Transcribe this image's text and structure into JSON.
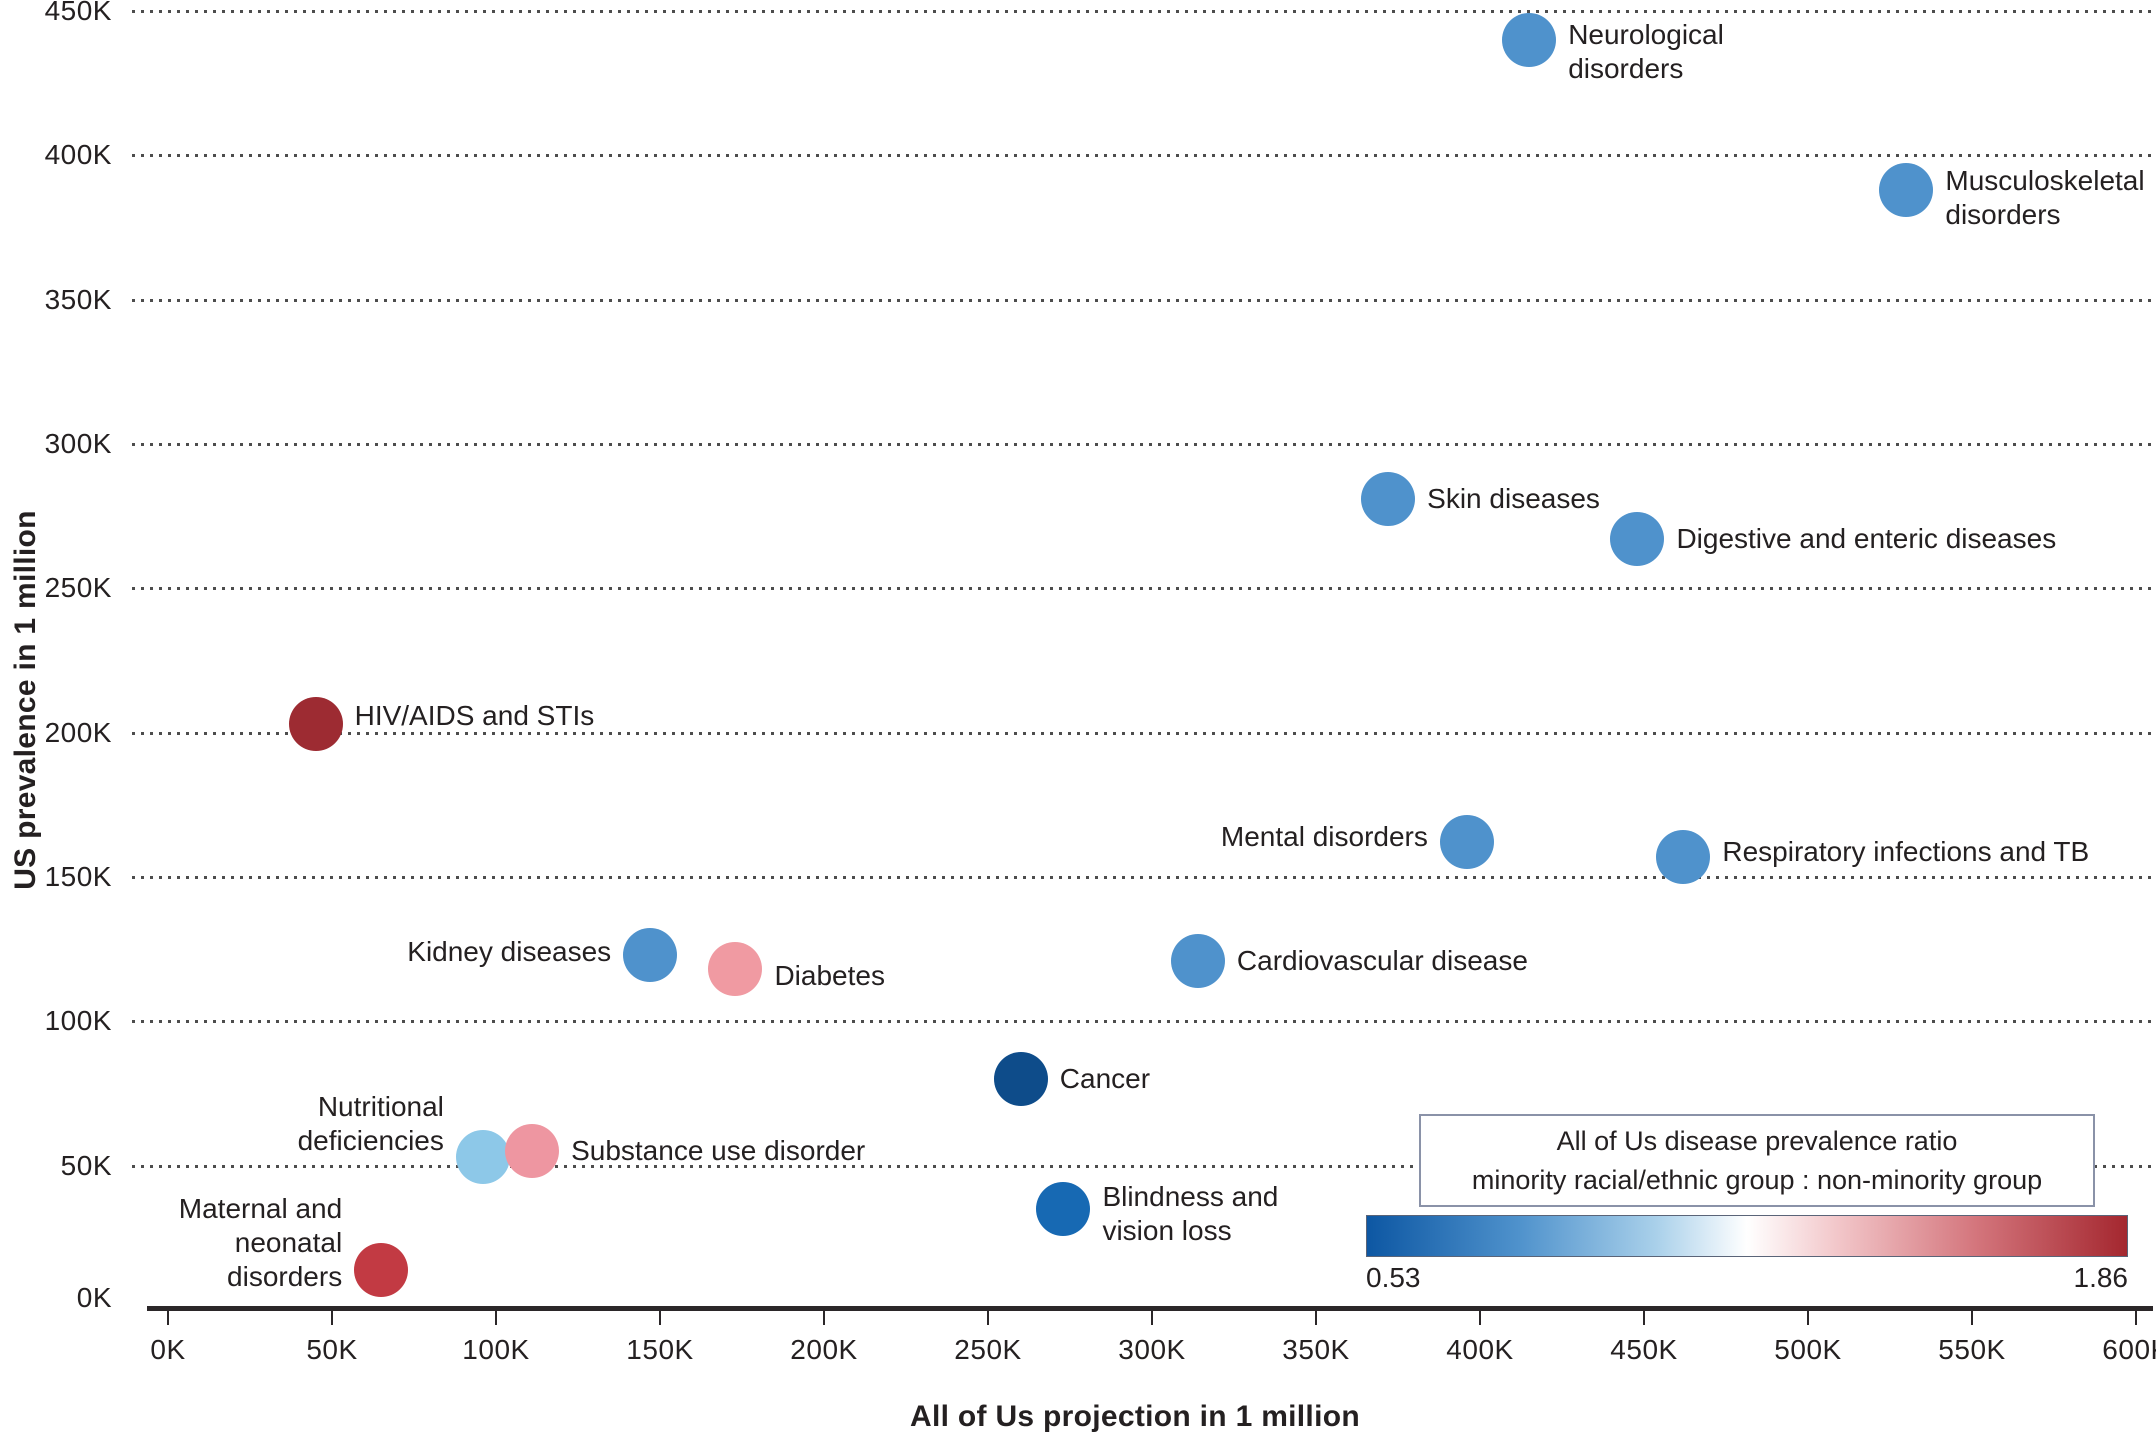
{
  "legend": {
    "title_line1": "All of Us disease prevalence ratio",
    "title_line2": "minority racial/ethnic group : non-minority group",
    "min_label": "0.53",
    "max_label": "1.86"
  },
  "chart_data": {
    "type": "scatter",
    "title": "",
    "xlabel": "All of Us projection in 1 million",
    "ylabel": "US prevalence in 1 million",
    "units": "thousands (K)",
    "xlim": [
      0,
      600
    ],
    "ylim": [
      0,
      450
    ],
    "x_tick_labels": [
      "0K",
      "50K",
      "100K",
      "150K",
      "200K",
      "250K",
      "300K",
      "350K",
      "400K",
      "450K",
      "500K",
      "550K",
      "600K"
    ],
    "y_tick_labels": [
      "0K",
      "50K",
      "100K",
      "150K",
      "200K",
      "250K",
      "300K",
      "350K",
      "400K",
      "450K"
    ],
    "grid": "horizontal-dotted",
    "legend_position": "bottom-right",
    "colorbar": {
      "label_line1": "All of Us disease prevalence ratio",
      "label_line2": "minority racial/ethnic group : non-minority group",
      "min": 0.53,
      "max": 1.86,
      "min_color": "#0d57a3",
      "mid_color": "#ffffff",
      "max_color": "#a4272f"
    },
    "points": [
      {
        "name": "neurological-disorders",
        "label": "Neurological\ndisorders",
        "x": 415,
        "y": 440,
        "color": "#4f92cc",
        "label_side": "right",
        "label_dy": 12
      },
      {
        "name": "musculoskeletal-disorders",
        "label": "Musculoskeletal\ndisorders",
        "x": 530,
        "y": 388,
        "color": "#4f92cc",
        "label_side": "right",
        "label_dy": 8
      },
      {
        "name": "skin-diseases",
        "label": "Skin diseases",
        "x": 372,
        "y": 281,
        "color": "#4f92cc",
        "label_side": "right",
        "label_dy": 0
      },
      {
        "name": "digestive-and-enteric-diseases",
        "label": "Digestive and enteric diseases",
        "x": 448,
        "y": 267,
        "color": "#4f92cc",
        "label_side": "right",
        "label_dy": 0
      },
      {
        "name": "hiv-aids-and-stis",
        "label": "HIV/AIDS and STIs",
        "x": 45,
        "y": 203,
        "color": "#9d2b32",
        "label_side": "right",
        "label_dy": -8
      },
      {
        "name": "mental-disorders",
        "label": "Mental disorders",
        "x": 396,
        "y": 162,
        "color": "#4f92cc",
        "label_side": "left",
        "label_dy": -5
      },
      {
        "name": "respiratory-infections-and-tb",
        "label": "Respiratory infections and TB",
        "x": 462,
        "y": 157,
        "color": "#4f92cc",
        "label_side": "right",
        "label_dy": -5
      },
      {
        "name": "kidney-diseases",
        "label": "Kidney diseases",
        "x": 147,
        "y": 123,
        "color": "#4f92cc",
        "label_side": "left",
        "label_dy": -3
      },
      {
        "name": "diabetes",
        "label": "Diabetes",
        "x": 173,
        "y": 118,
        "color": "#f09aa2",
        "label_side": "right",
        "label_dy": 7
      },
      {
        "name": "cardiovascular-disease",
        "label": "Cardiovascular disease",
        "x": 314,
        "y": 121,
        "color": "#4f92cc",
        "label_side": "right",
        "label_dy": 0
      },
      {
        "name": "cancer",
        "label": "Cancer",
        "x": 260,
        "y": 80,
        "color": "#0e4c8a",
        "label_side": "right",
        "label_dy": 0
      },
      {
        "name": "nutritional-deficiencies",
        "label": "Nutritional\ndeficiencies",
        "x": 96,
        "y": 53,
        "color": "#8dc8e8",
        "label_side": "left",
        "label_dy": -33
      },
      {
        "name": "substance-use-disorder",
        "label": "Substance use disorder",
        "x": 111,
        "y": 55,
        "color": "#ee96a1",
        "label_side": "right",
        "label_dy": 0
      },
      {
        "name": "blindness-and-vision-loss",
        "label": "Blindness and\nvision loss",
        "x": 273,
        "y": 35,
        "color": "#1769b3",
        "label_side": "right",
        "label_dy": 5
      },
      {
        "name": "maternal-and-neonatal-disorders",
        "label": "Maternal and\nneonatal\ndisorders",
        "x": 65,
        "y": 14,
        "color": "#c23a43",
        "label_side": "left",
        "label_dy": -27
      }
    ]
  }
}
